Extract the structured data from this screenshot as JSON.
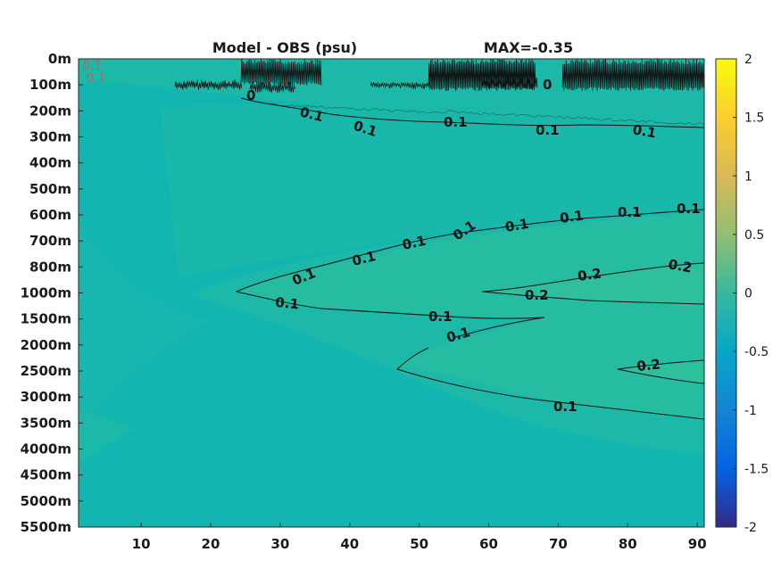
{
  "chart_data": {
    "type": "heatmap",
    "title_left": "Model - OBS (psu)",
    "title_right": "MAX=-0.35",
    "xlabel": "",
    "ylabel": "",
    "x_ticks": [
      10,
      20,
      30,
      40,
      50,
      60,
      70,
      80,
      90
    ],
    "xlim": [
      1,
      91
    ],
    "y_ticks": [
      "0m",
      "100m",
      "200m",
      "300m",
      "400m",
      "500m",
      "600m",
      "700m",
      "800m",
      "1000m",
      "1500m",
      "2000m",
      "2500m",
      "3000m",
      "3500m",
      "4000m",
      "4500m",
      "5000m",
      "5500m"
    ],
    "y_reversed": true,
    "colorbar": {
      "limits": [
        -2,
        2
      ],
      "ticks": [
        "2",
        "1.5",
        "1",
        "0.5",
        "0",
        "-0.5",
        "-1",
        "-1.5",
        "-2"
      ],
      "colormap": "parula"
    },
    "background_color": "#13b5b1",
    "contours": [
      {
        "level": 0.1,
        "labels": [
          "0.1",
          "0.1",
          "0.1",
          "0.1",
          "0.1"
        ]
      },
      {
        "level": 0.1,
        "labels": [
          "0.1",
          "0.1",
          "0.1",
          "0.1",
          "0.1",
          "0.1",
          "0.1",
          "0.1"
        ]
      },
      {
        "level": 0.1,
        "labels": [
          "0.1",
          "0.1"
        ]
      },
      {
        "level": 0.1,
        "labels": [
          "0.1"
        ]
      },
      {
        "level": 0.2,
        "labels": [
          "0.2",
          "0.2",
          "0.2"
        ]
      },
      {
        "level": 0.2,
        "labels": [
          "0.2"
        ]
      }
    ],
    "surface_labels": [
      "0.1",
      "0.1",
      "0",
      "0"
    ]
  }
}
